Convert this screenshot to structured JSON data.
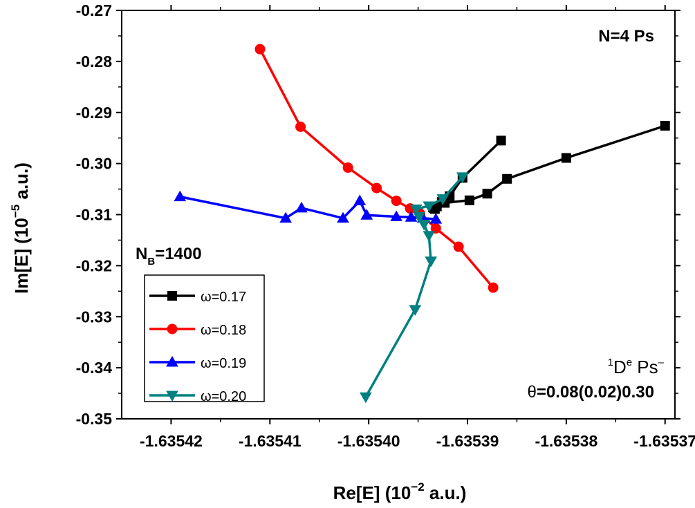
{
  "chart_data": {
    "type": "line",
    "xlabel": {
      "text": "Re[E] (10",
      "sup": "−2",
      "suffix": " a.u.)"
    },
    "ylabel": {
      "text": "Im[E] (10",
      "sup": "−5",
      "suffix": " a.u.)"
    },
    "xlim": [
      -1.635425,
      -1.635369
    ],
    "ylim": [
      -0.35,
      -0.27
    ],
    "xticks": [
      -1.63542,
      -1.63541,
      -1.6354,
      -1.63539,
      -1.63538,
      -1.63537
    ],
    "xtick_labels": [
      "-1.63542",
      "-1.63541",
      "-1.63540",
      "-1.63539",
      "-1.63538",
      "-1.63537"
    ],
    "yticks": [
      -0.35,
      -0.34,
      -0.33,
      -0.32,
      -0.31,
      -0.3,
      -0.29,
      -0.28,
      -0.27
    ],
    "ytick_labels": [
      "-0.35",
      "-0.34",
      "-0.33",
      "-0.32",
      "-0.31",
      "-0.30",
      "-0.29",
      "-0.28",
      "-0.27"
    ],
    "grid": false,
    "legend_position": "bottom-left",
    "annotations": {
      "top_right": "N=4 Ps",
      "nb_label": {
        "main": "N",
        "sub": "B",
        "rest": "=1400"
      },
      "state_label": {
        "pre_sup": "1",
        "main": "D",
        "sup1": "e",
        "mid": " Ps",
        "sup2": "–"
      },
      "theta_label": {
        "symbol": "θ",
        "rest": "=0.08(0.02)0.30"
      }
    },
    "series": [
      {
        "name": "ω=0.17",
        "color": "#000000",
        "marker": "square",
        "x": [
          -1.6353866,
          -1.6353905,
          -1.6353918,
          -1.6353926,
          -1.6353931,
          -1.6353933,
          -1.6353934,
          -1.6353935,
          -1.6353923,
          -1.6353898,
          -1.635388,
          -1.635386,
          -1.63538,
          -1.63537
        ],
        "y": [
          -0.2955,
          -0.3028,
          -0.3064,
          -0.3075,
          -0.3084,
          -0.3089,
          -0.3087,
          -0.3086,
          -0.3077,
          -0.3072,
          -0.3059,
          -0.303,
          -0.2989,
          -0.2926
        ]
      },
      {
        "name": "ω=0.18",
        "color": "#ff0000",
        "marker": "circle",
        "x": [
          -1.635411,
          -1.6354069,
          -1.6354021,
          -1.6353992,
          -1.6353972,
          -1.6353958,
          -1.6353948,
          -1.6353932,
          -1.6353909,
          -1.6353874
        ],
        "y": [
          -0.2776,
          -0.2928,
          -0.3008,
          -0.3048,
          -0.3073,
          -0.3088,
          -0.3098,
          -0.3127,
          -0.3163,
          -0.3243
        ]
      },
      {
        "name": "ω=0.19",
        "color": "#0000ff",
        "marker": "triangle-up",
        "x": [
          -1.6354191,
          -1.6354084,
          -1.6354068,
          -1.6354026,
          -1.6354009,
          -1.6354002,
          -1.6353972,
          -1.6353957,
          -1.6353945,
          -1.6353932
        ],
        "y": [
          -0.3065,
          -0.3107,
          -0.3087,
          -0.3107,
          -0.3073,
          -0.3101,
          -0.3104,
          -0.3105,
          -0.3107,
          -0.3109
        ]
      },
      {
        "name": "ω=0.20",
        "color": "#008080",
        "marker": "triangle-down",
        "x": [
          -1.6354003,
          -1.6353953,
          -1.6353937,
          -1.6353939,
          -1.6353944,
          -1.6353949,
          -1.6353952,
          -1.6353939,
          -1.6353925,
          -1.6353905
        ],
        "y": [
          -0.3457,
          -0.3286,
          -0.3191,
          -0.3141,
          -0.3119,
          -0.3104,
          -0.3089,
          -0.3083,
          -0.3069,
          -0.3026
        ]
      }
    ]
  }
}
